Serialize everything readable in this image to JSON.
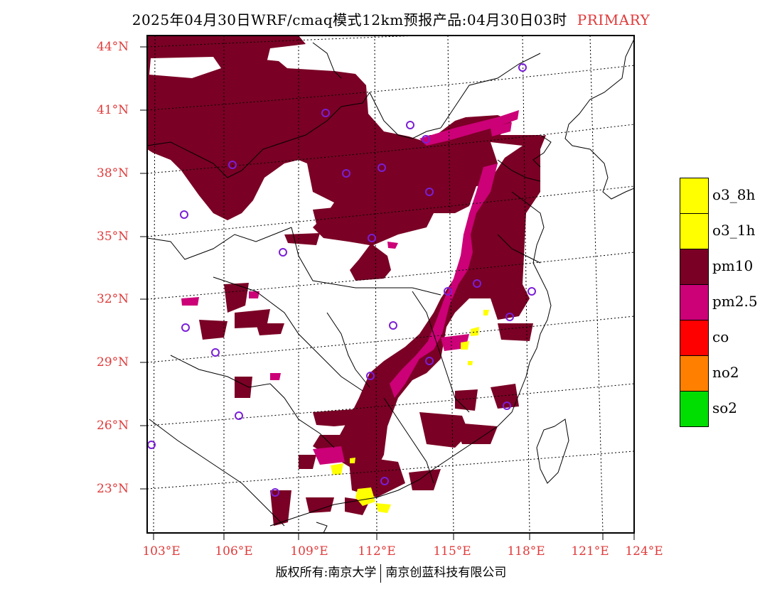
{
  "header": {
    "title": "2025年04月30日WRF/cmaq模式12km预报产品:04月30日03时",
    "badge": "PRIMARY"
  },
  "map": {
    "lat_labels": [
      "44°N",
      "41°N",
      "38°N",
      "35°N",
      "32°N",
      "29°N",
      "26°N",
      "23°N"
    ],
    "lon_labels": [
      "103°E",
      "106°E",
      "109°E",
      "112°E",
      "115°E",
      "118°E",
      "121°E",
      "124°E"
    ]
  },
  "legend": {
    "items": [
      {
        "label": "o3_8h",
        "color": "#ffff00"
      },
      {
        "label": "o3_1h",
        "color": "#ffff00"
      },
      {
        "label": "pm10",
        "color": "#7a0025"
      },
      {
        "label": "pm2.5",
        "color": "#cc0077"
      },
      {
        "label": "co",
        "color": "#ff0000"
      },
      {
        "label": "no2",
        "color": "#ff7f00"
      },
      {
        "label": "so2",
        "color": "#00dd00"
      }
    ]
  },
  "footer": {
    "left": "版权所有:南京大学",
    "right": "南京创蓝科技有限公司"
  }
}
